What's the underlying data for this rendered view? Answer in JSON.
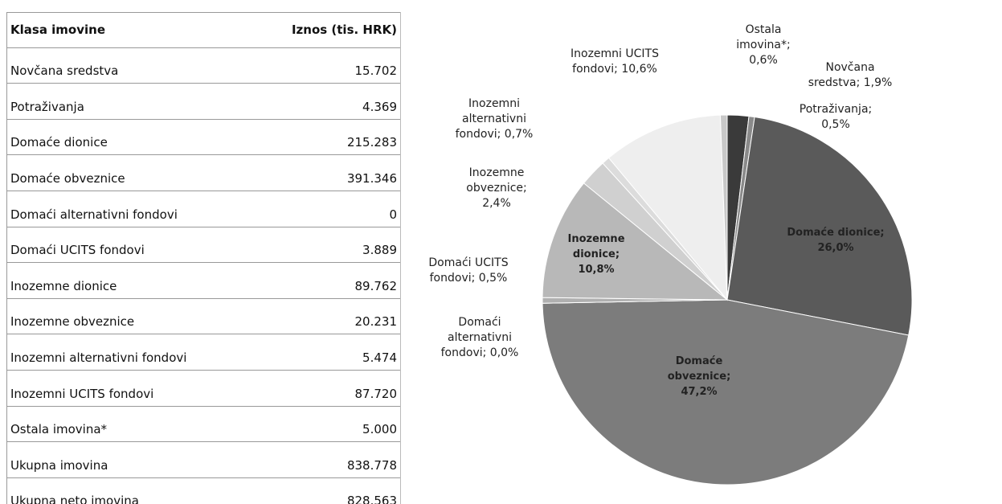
{
  "table": {
    "header": [
      "Klasa imovine",
      "Iznos (tis. HRK)"
    ],
    "amounts": [
      "15.702",
      "4.369",
      "215.283",
      "391.346",
      "0",
      "3.889",
      "89.762",
      "20.231",
      "5.474",
      "87.720",
      "5.000"
    ],
    "totals": [
      {
        "label": "Ukupna imovina",
        "amount": "838.778"
      },
      {
        "label": "Ukupna neto imovina",
        "amount": "828.563"
      }
    ]
  },
  "chart_data": {
    "type": "pie",
    "categories": [
      "Novčana sredstva",
      "Potraživanja",
      "Domaće dionice",
      "Domaće obveznice",
      "Domaći alternativni fondovi",
      "Domaći UCITS fondovi",
      "Inozemne dionice",
      "Inozemne obveznice",
      "Inozemni alternativni fondovi",
      "Inozemni UCITS fondovi",
      "Ostala imovina*"
    ],
    "values": [
      1.9,
      0.5,
      26.0,
      47.2,
      0.0,
      0.5,
      10.8,
      2.4,
      0.7,
      10.6,
      0.6
    ],
    "value_labels": [
      "Novčana sredstva; 1,9%",
      "Potraživanja; 0,5%",
      "Domaće dionice; 26,0%",
      "Domaće obveznice; 47,2%",
      "Domaći alternativni fondovi; 0,0%",
      "Domaći UCITS fondovi; 0,5%",
      "Inozemne dionice; 10,8%",
      "Inozemne obveznice; 2,4%",
      "Inozemni alternativni fondovi; 0,7%",
      "Inozemni UCITS fondovi; 10,6%",
      "Ostala imovina*; 0,6%"
    ],
    "colors": [
      "#3a3a3a",
      "#8a8a8a",
      "#5a5a5a",
      "#7c7c7c",
      "#9a9a9a",
      "#b0b0b0",
      "#b8b8b8",
      "#d0d0d0",
      "#dcdcdc",
      "#eeeeee",
      "#c8c8c8"
    ]
  }
}
